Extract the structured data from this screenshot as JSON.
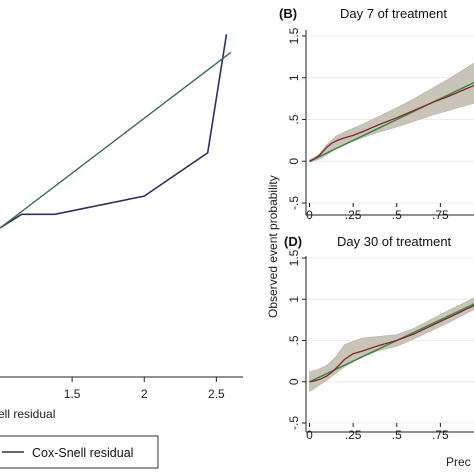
{
  "chart_data": [
    {
      "type": "line",
      "panel": "left",
      "title": "",
      "xlabel": "Cox-Snell residual",
      "xlabel_visible": "ell residual",
      "xlim": [
        1.0,
        2.65
      ],
      "ylim": [
        0.0,
        1.0
      ],
      "x_ticks": [
        "1.5",
        "2",
        "2.5"
      ],
      "x_tick_values": [
        1.5,
        2,
        2.5
      ],
      "legend_entries": [
        "Cox-Snell residual"
      ],
      "colors": {
        "cumhaz": "#2d3161",
        "reference": "#3a6b5c"
      },
      "series": [
        {
          "id": "cumhaz",
          "x": [
            1.0,
            1.15,
            1.38,
            2.0,
            2.44,
            2.57
          ],
          "y": [
            0.0,
            0.06,
            0.06,
            0.14,
            0.33,
            0.85
          ]
        },
        {
          "id": "reference",
          "x": [
            1.0,
            2.6
          ],
          "y": [
            0.0,
            0.77
          ]
        }
      ]
    },
    {
      "type": "line",
      "panel": "B",
      "panel_label": "(B)",
      "title": "Day 7 of treatment",
      "xlabel": "Prec",
      "ylabel": "Observed event probability",
      "xlim": [
        -0.02,
        1.0
      ],
      "ylim": [
        -0.5,
        1.5
      ],
      "x_ticks": [
        "0",
        ".25",
        ".5",
        ".75"
      ],
      "x_tick_values": [
        0,
        0.25,
        0.5,
        0.75
      ],
      "y_ticks": [
        "-.5",
        "0",
        ".5",
        "1",
        "1.5"
      ],
      "y_tick_values": [
        -0.5,
        0,
        0.5,
        1,
        1.5
      ],
      "colors": {
        "band": "#c9c4b8",
        "smooth": "#8b2035",
        "reference": "#3a8a42"
      },
      "series": [
        {
          "id": "ci-upper",
          "x": [
            0.0,
            0.05,
            0.1,
            0.15,
            0.2,
            0.3,
            0.4,
            0.5,
            0.6,
            0.7,
            0.8,
            0.9,
            0.97
          ],
          "y": [
            0.02,
            0.07,
            0.2,
            0.3,
            0.35,
            0.44,
            0.54,
            0.64,
            0.75,
            0.87,
            0.99,
            1.12,
            1.21
          ]
        },
        {
          "id": "ci-lower",
          "x": [
            0.0,
            0.05,
            0.1,
            0.15,
            0.2,
            0.3,
            0.4,
            0.5,
            0.6,
            0.7,
            0.8,
            0.9,
            0.97
          ],
          "y": [
            -0.01,
            0.02,
            0.08,
            0.15,
            0.2,
            0.28,
            0.35,
            0.41,
            0.48,
            0.55,
            0.61,
            0.67,
            0.71
          ]
        },
        {
          "id": "smooth",
          "x": [
            0.0,
            0.03,
            0.06,
            0.1,
            0.13,
            0.16,
            0.2,
            0.25,
            0.3,
            0.4,
            0.5,
            0.6,
            0.7,
            0.8,
            0.9,
            0.97
          ],
          "y": [
            0.0,
            0.03,
            0.08,
            0.17,
            0.22,
            0.25,
            0.28,
            0.31,
            0.35,
            0.44,
            0.52,
            0.61,
            0.7,
            0.78,
            0.87,
            0.93
          ]
        },
        {
          "id": "reference",
          "x": [
            0.0,
            0.97
          ],
          "y": [
            0.0,
            0.97
          ]
        }
      ]
    },
    {
      "type": "line",
      "panel": "D",
      "panel_label": "(D)",
      "title": "Day 30 of treatment",
      "xlabel": "Prec",
      "ylabel": "Observed event probability",
      "xlim": [
        -0.02,
        1.0
      ],
      "ylim": [
        -0.5,
        1.5
      ],
      "x_ticks": [
        "0",
        ".25",
        ".5",
        ".75"
      ],
      "x_tick_values": [
        0,
        0.25,
        0.5,
        0.75
      ],
      "y_ticks": [
        "-.5",
        "0",
        ".5",
        "1",
        "1.5"
      ],
      "y_tick_values": [
        -0.5,
        0,
        0.5,
        1,
        1.5
      ],
      "colors": {
        "band": "#c9c4b8",
        "smooth": "#8b2035",
        "reference": "#3a8a42"
      },
      "series": [
        {
          "id": "ci-upper",
          "x": [
            0.0,
            0.05,
            0.1,
            0.15,
            0.2,
            0.3,
            0.4,
            0.5,
            0.6,
            0.7,
            0.8,
            0.9,
            0.97
          ],
          "y": [
            0.12,
            0.15,
            0.2,
            0.3,
            0.45,
            0.53,
            0.55,
            0.57,
            0.65,
            0.76,
            0.87,
            0.97,
            1.05
          ]
        },
        {
          "id": "ci-lower",
          "x": [
            0.0,
            0.05,
            0.1,
            0.15,
            0.2,
            0.3,
            0.4,
            0.5,
            0.6,
            0.7,
            0.8,
            0.9,
            0.97
          ],
          "y": [
            -0.12,
            -0.05,
            0.02,
            0.1,
            0.18,
            0.3,
            0.38,
            0.43,
            0.52,
            0.62,
            0.72,
            0.83,
            0.9
          ]
        },
        {
          "id": "smooth",
          "x": [
            0.0,
            0.03,
            0.06,
            0.1,
            0.13,
            0.16,
            0.2,
            0.25,
            0.3,
            0.4,
            0.5,
            0.6,
            0.7,
            0.8,
            0.9,
            0.97
          ],
          "y": [
            0.0,
            0.01,
            0.03,
            0.07,
            0.12,
            0.18,
            0.27,
            0.34,
            0.37,
            0.44,
            0.5,
            0.58,
            0.68,
            0.78,
            0.88,
            0.95
          ]
        },
        {
          "id": "reference",
          "x": [
            0.0,
            0.97
          ],
          "y": [
            0.0,
            0.97
          ]
        }
      ]
    }
  ]
}
